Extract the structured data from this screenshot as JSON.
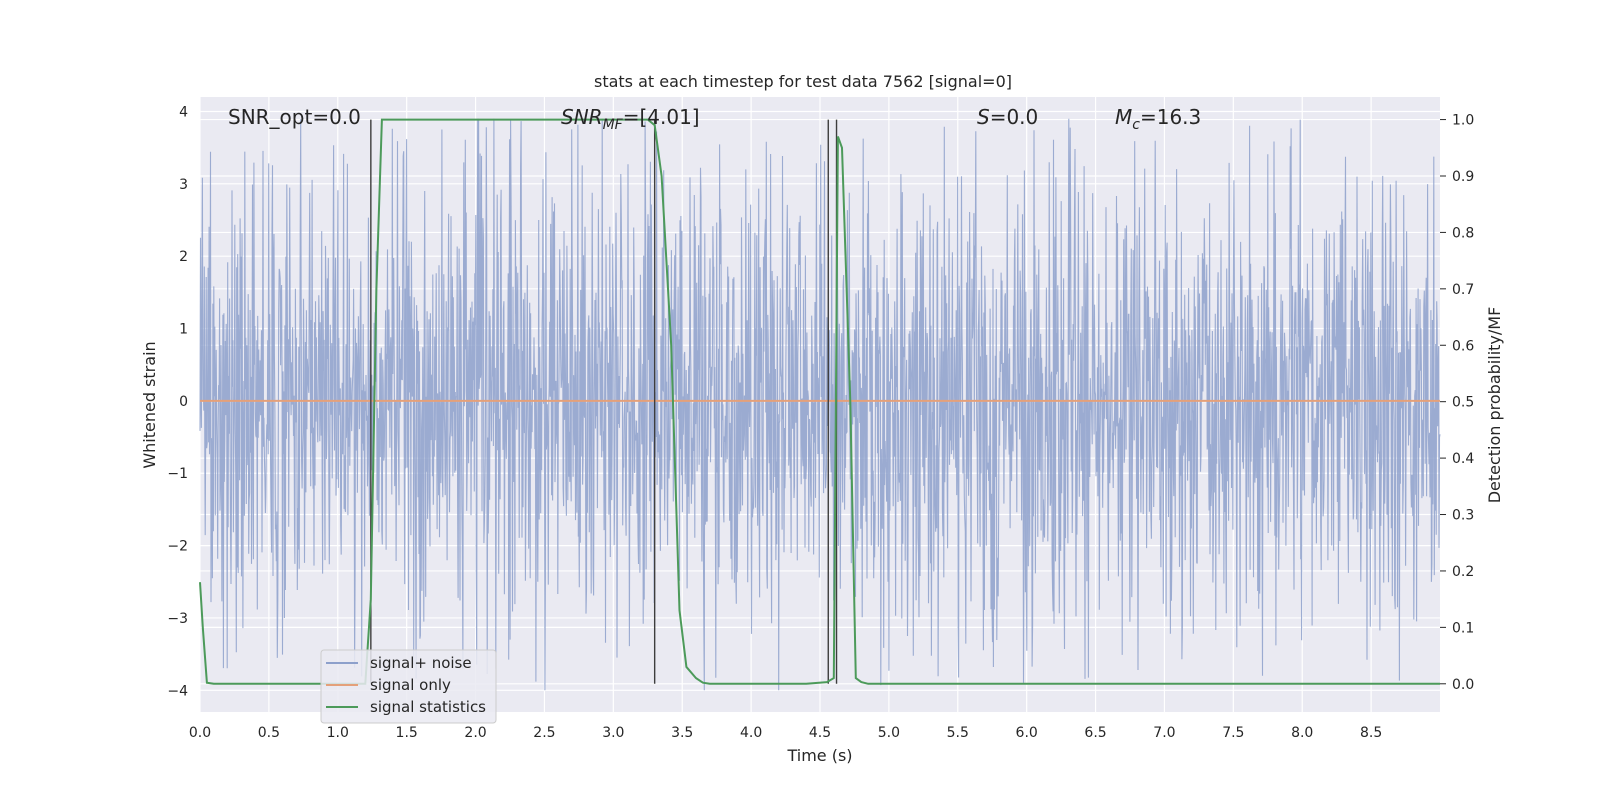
{
  "chart_data": {
    "type": "line",
    "title": "stats at each timestep for test data 7562 [signal=0]",
    "xlabel": "Time (s)",
    "ylabel_left": "Whitened strain",
    "ylabel_right": "Detection probability/MF",
    "xlim": [
      0.0,
      9.0
    ],
    "ylim_left": [
      -4.3,
      4.2
    ],
    "ylim_right": [
      -0.05,
      1.04
    ],
    "x_ticks": [
      "0.0",
      "0.5",
      "1.0",
      "1.5",
      "2.0",
      "2.5",
      "3.0",
      "3.5",
      "4.0",
      "4.5",
      "5.0",
      "5.5",
      "6.0",
      "6.5",
      "7.0",
      "7.5",
      "8.0",
      "8.5"
    ],
    "y_ticks_left": [
      "−4",
      "−3",
      "−2",
      "−1",
      "0",
      "1",
      "2",
      "3",
      "4"
    ],
    "y_ticks_right": [
      "0.0",
      "0.1",
      "0.2",
      "0.3",
      "0.4",
      "0.5",
      "0.6",
      "0.7",
      "0.8",
      "0.9",
      "1.0"
    ],
    "grid": true,
    "legend_position": "lower-left",
    "annotations": {
      "snr_opt": "SNR_opt=0.0",
      "snr_mf_prefix": "SNR",
      "snr_mf_sub": "MF",
      "snr_mf_value": "=[4.01]",
      "s_symbol": "S",
      "s_value": "=0.0",
      "mc_symbol": "M",
      "mc_sub": "c",
      "mc_value": "=16.3"
    },
    "vertical_markers": [
      1.24,
      3.3,
      4.56,
      4.62
    ],
    "series": [
      {
        "name": "signal+ noise",
        "color": "#8da0cb",
        "axis": "left",
        "kind": "noise-band",
        "approx_envelope": [
          -2.2,
          2.2
        ],
        "approx_peak_range": [
          -4.0,
          3.9
        ]
      },
      {
        "name": "signal only",
        "color": "#e4a07a",
        "axis": "left",
        "x": [
          0.0,
          9.0
        ],
        "y": [
          0.0,
          0.0
        ]
      },
      {
        "name": "signal statistics",
        "color": "#4c9a5a",
        "axis": "right",
        "x": [
          0.0,
          0.02,
          0.05,
          0.1,
          0.3,
          0.6,
          1.0,
          1.2,
          1.24,
          1.28,
          1.32,
          1.5,
          2.0,
          2.5,
          3.0,
          3.25,
          3.3,
          3.35,
          3.42,
          3.48,
          3.53,
          3.6,
          3.65,
          3.7,
          4.0,
          4.4,
          4.55,
          4.6,
          4.63,
          4.66,
          4.72,
          4.76,
          4.8,
          4.85,
          5.0,
          6.0,
          7.0,
          8.0,
          9.0
        ],
        "y": [
          0.18,
          0.1,
          0.002,
          0.0,
          0.0,
          0.0,
          0.0,
          0.0,
          0.15,
          0.7,
          1.0,
          1.0,
          1.0,
          1.0,
          1.0,
          1.0,
          0.99,
          0.9,
          0.6,
          0.13,
          0.03,
          0.01,
          0.002,
          0.0,
          0.0,
          0.0,
          0.003,
          0.01,
          0.97,
          0.95,
          0.5,
          0.01,
          0.003,
          0.0,
          0.0,
          0.0,
          0.0,
          0.0,
          0.0
        ]
      }
    ]
  },
  "colors": {
    "plot_background": "#eaeaf2",
    "grid": "#ffffff",
    "marker_lines": "#3d3d3d"
  }
}
